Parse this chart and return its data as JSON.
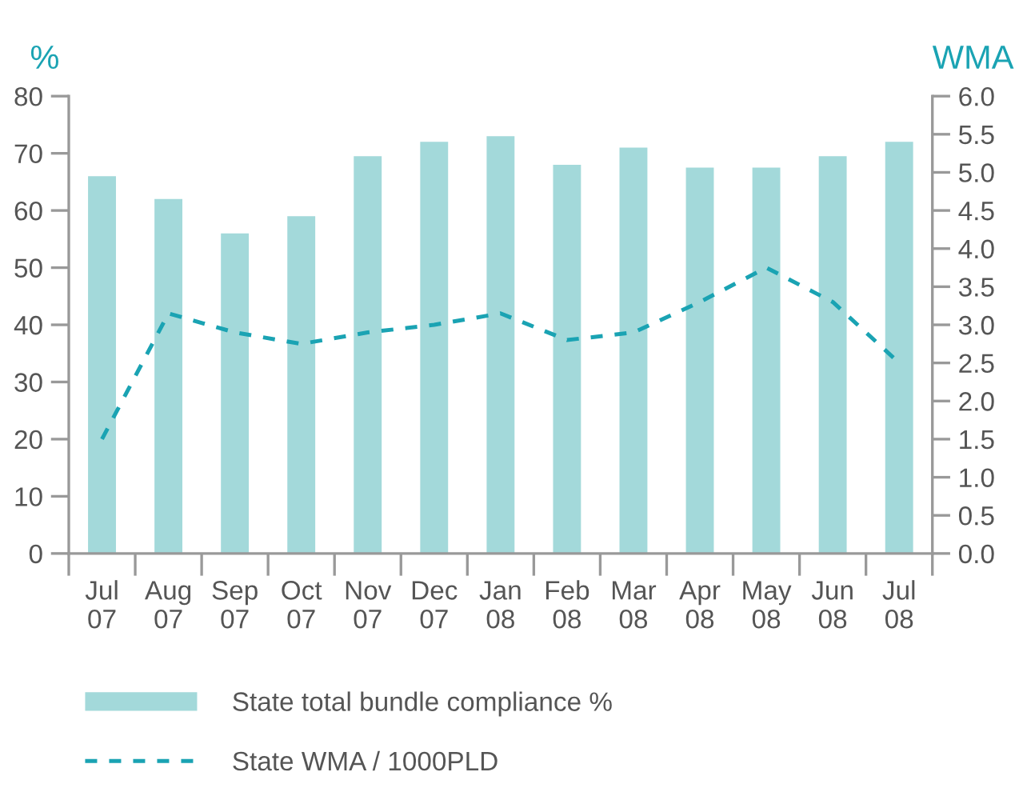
{
  "chart_data": {
    "type": "bar",
    "categories": [
      "Jul\n07",
      "Aug\n07",
      "Sep\n07",
      "Oct\n07",
      "Nov\n07",
      "Dec\n07",
      "Jan\n08",
      "Feb\n08",
      "Mar\n08",
      "Apr\n08",
      "May\n08",
      "Jun\n08",
      "Jul\n08"
    ],
    "series": [
      {
        "name": "State total bundle compliance %",
        "color": "#a3d9da",
        "values": [
          66,
          62,
          56,
          59,
          69.5,
          72,
          73,
          68,
          71,
          67.5,
          67.5,
          69.5,
          72
        ]
      },
      {
        "name": "State WMA / 1000PLD",
        "type": "line",
        "axis": "y2",
        "color": "#1aa3b3",
        "line_style": "dashed",
        "values": [
          1.5,
          3.15,
          2.9,
          2.75,
          2.9,
          3.0,
          3.15,
          2.8,
          2.9,
          3.3,
          3.75,
          3.3,
          2.5
        ]
      }
    ],
    "ylabel": "%",
    "y2label": "WMA",
    "ylim": [
      0,
      80
    ],
    "yticks": [
      0,
      10,
      20,
      30,
      40,
      50,
      60,
      70,
      80
    ],
    "y2lim": [
      0,
      6
    ],
    "y2ticks": [
      {
        "value": 0,
        "label": "0.0"
      },
      {
        "value": 0.5,
        "label": "0.5"
      },
      {
        "value": 1,
        "label": "1.0"
      },
      {
        "value": 1.5,
        "label": "1.5"
      },
      {
        "value": 2,
        "label": "2.0"
      },
      {
        "value": 2.5,
        "label": "2.5"
      },
      {
        "value": 3,
        "label": "3.0"
      },
      {
        "value": 3.5,
        "label": "3.5"
      },
      {
        "value": 4,
        "label": "4.0"
      },
      {
        "value": 4.5,
        "label": "4.5"
      },
      {
        "value": 5,
        "label": "5.0"
      },
      {
        "value": 5.5,
        "label": "5.5"
      },
      {
        "value": 6,
        "label": "6.0"
      }
    ],
    "grid": false,
    "legend": "bottom left"
  }
}
